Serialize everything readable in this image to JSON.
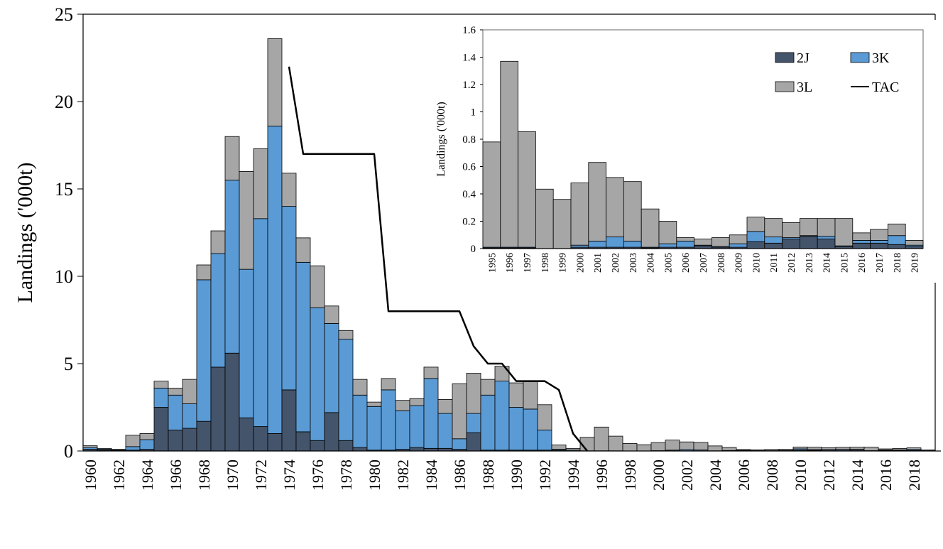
{
  "colors": {
    "2J": "#44546a",
    "3K": "#5b9bd5",
    "3L": "#a6a6a6",
    "TAC": "#000000",
    "bar_stroke": "#000000"
  },
  "chart_data": [
    {
      "type": "bar",
      "stacked": true,
      "title": "",
      "xlabel": "",
      "ylabel": "Landings  ('000t)",
      "ylim": [
        0,
        25
      ],
      "yticks": [
        0,
        5,
        10,
        15,
        20,
        25
      ],
      "x": [
        1960,
        1961,
        1962,
        1963,
        1964,
        1965,
        1966,
        1967,
        1968,
        1969,
        1970,
        1971,
        1972,
        1973,
        1974,
        1975,
        1976,
        1977,
        1978,
        1979,
        1980,
        1981,
        1982,
        1983,
        1984,
        1985,
        1986,
        1987,
        1988,
        1989,
        1990,
        1991,
        1992,
        1993,
        1994,
        1995,
        1996,
        1997,
        1998,
        1999,
        2000,
        2001,
        2002,
        2003,
        2004,
        2005,
        2006,
        2007,
        2008,
        2009,
        2010,
        2011,
        2012,
        2013,
        2014,
        2015,
        2016,
        2017,
        2018,
        2019
      ],
      "xticks": [
        1960,
        1962,
        1964,
        1966,
        1968,
        1970,
        1972,
        1974,
        1976,
        1978,
        1980,
        1982,
        1984,
        1986,
        1988,
        1990,
        1992,
        1994,
        1996,
        1998,
        2000,
        2002,
        2004,
        2006,
        2008,
        2010,
        2012,
        2014,
        2016,
        2018
      ],
      "series": [
        {
          "name": "2J",
          "values": [
            0.1,
            0.05,
            0.02,
            0.05,
            0.1,
            2.5,
            1.2,
            1.3,
            1.7,
            4.8,
            5.6,
            1.9,
            1.4,
            1.0,
            3.5,
            1.1,
            0.6,
            2.2,
            0.6,
            0.2,
            0.05,
            0.05,
            0.1,
            0.2,
            0.15,
            0.15,
            0.1,
            1.05,
            0.05,
            0.05,
            0.05,
            0.05,
            0.05,
            0.05,
            0,
            0.01,
            0.01,
            0.01,
            0,
            0,
            0.01,
            0.01,
            0.01,
            0.01,
            0,
            0.01,
            0.01,
            0.01,
            0.01,
            0.01,
            0.05,
            0.04,
            0.07,
            0.09,
            0.07,
            0.02,
            0.04,
            0.04,
            0.03,
            0.01
          ]
        },
        {
          "name": "3K",
          "values": [
            0.1,
            0.05,
            0.03,
            0.2,
            0.55,
            1.1,
            2.0,
            1.4,
            8.1,
            6.5,
            9.9,
            8.5,
            11.9,
            17.6,
            10.5,
            9.7,
            7.6,
            5.1,
            5.8,
            3.0,
            2.5,
            3.45,
            2.2,
            2.4,
            4.0,
            2.0,
            0.6,
            1.1,
            3.15,
            3.95,
            2.45,
            2.35,
            1.15,
            0.05,
            0.05,
            0,
            0,
            0,
            0,
            0,
            0.01,
            0.04,
            0.07,
            0.05,
            0.01,
            0.02,
            0.04,
            0.01,
            0.01,
            0.02,
            0.07,
            0.04,
            0.01,
            0,
            0.02,
            0,
            0.02,
            0.02,
            0.06,
            0.01
          ]
        },
        {
          "name": "3L",
          "values": [
            0.1,
            0.05,
            0.05,
            0.65,
            0.35,
            0.4,
            0.4,
            1.4,
            0.85,
            1.3,
            2.5,
            5.6,
            4.0,
            5.0,
            1.9,
            1.4,
            2.4,
            1.0,
            0.5,
            0.9,
            0.25,
            0.65,
            0.6,
            0.4,
            0.65,
            0.8,
            3.15,
            2.3,
            0.9,
            0.85,
            1.4,
            1.6,
            1.45,
            0.25,
            0.1,
            0.77,
            1.36,
            0.84,
            0.43,
            0.36,
            0.46,
            0.58,
            0.44,
            0.43,
            0.28,
            0.17,
            0.03,
            0.05,
            0.07,
            0.07,
            0.11,
            0.14,
            0.11,
            0.12,
            0.13,
            0.2,
            0.06,
            0.08,
            0.09,
            0.04
          ]
        }
      ],
      "lines": [
        {
          "name": "TAC",
          "x": [
            1974,
            1975,
            1976,
            1977,
            1978,
            1979,
            1980,
            1981,
            1982,
            1983,
            1984,
            1985,
            1986,
            1987,
            1988,
            1989,
            1990,
            1991,
            1992,
            1993,
            1994,
            1995
          ],
          "values": [
            22,
            17,
            17,
            17,
            17,
            17,
            17,
            8,
            8,
            8,
            8,
            8,
            8,
            6,
            5,
            5,
            4,
            4,
            4,
            3.5,
            1,
            0
          ]
        }
      ]
    },
    {
      "type": "bar",
      "stacked": true,
      "inset": true,
      "title": "",
      "xlabel": "",
      "ylabel": "Landings  ('000t)",
      "ylim": [
        0,
        1.6
      ],
      "yticks": [
        0,
        0.2,
        0.4,
        0.6,
        0.8,
        1,
        1.2,
        1.4,
        1.6
      ],
      "ytick_labels": [
        "0",
        "0.2",
        "0.4",
        "0.6",
        "0.8",
        "1",
        "1.2",
        "1.4",
        "1.6"
      ],
      "x": [
        1995,
        1996,
        1997,
        1998,
        1999,
        2000,
        2001,
        2002,
        2003,
        2004,
        2005,
        2006,
        2007,
        2008,
        2009,
        2010,
        2011,
        2012,
        2013,
        2014,
        2015,
        2016,
        2017,
        2018,
        2019
      ],
      "xticks": [
        1995,
        1996,
        1997,
        1998,
        1999,
        2000,
        2001,
        2002,
        2003,
        2004,
        2005,
        2006,
        2007,
        2008,
        2009,
        2010,
        2011,
        2012,
        2013,
        2014,
        2015,
        2016,
        2017,
        2018,
        2019
      ],
      "legend_position": "top-right",
      "legend": [
        "2J",
        "3K",
        "3L",
        "TAC"
      ],
      "series": [
        {
          "name": "2J",
          "values": [
            0.005,
            0.005,
            0.005,
            0,
            0,
            0.01,
            0.01,
            0.01,
            0.01,
            0.005,
            0.01,
            0.01,
            0.02,
            0.01,
            0.01,
            0.05,
            0.04,
            0.07,
            0.09,
            0.07,
            0.015,
            0.04,
            0.04,
            0.03,
            0.015
          ]
        },
        {
          "name": "3K",
          "values": [
            0.005,
            0.005,
            0.005,
            0,
            0,
            0.015,
            0.045,
            0.075,
            0.045,
            0.005,
            0.025,
            0.045,
            0.005,
            0.005,
            0.025,
            0.075,
            0.045,
            0.01,
            0.005,
            0.02,
            0.005,
            0.02,
            0.02,
            0.065,
            0.01
          ]
        },
        {
          "name": "3L",
          "values": [
            0.77,
            1.36,
            0.845,
            0.435,
            0.36,
            0.455,
            0.575,
            0.435,
            0.435,
            0.28,
            0.165,
            0.025,
            0.045,
            0.065,
            0.065,
            0.105,
            0.135,
            0.11,
            0.125,
            0.13,
            0.2,
            0.055,
            0.08,
            0.085,
            0.035
          ]
        }
      ]
    }
  ]
}
